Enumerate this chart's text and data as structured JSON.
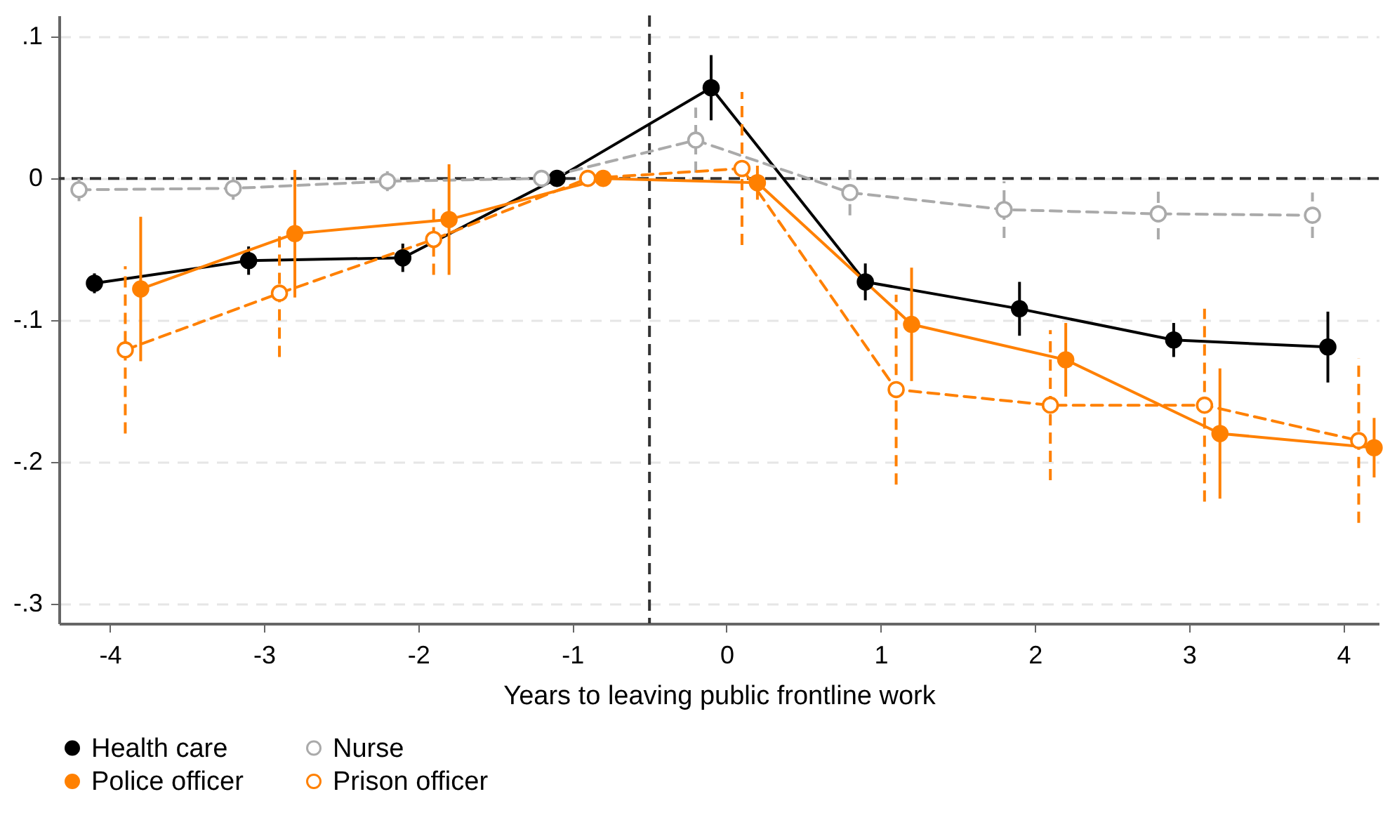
{
  "chart_data": {
    "type": "line",
    "xlabel": "Years to leaving public frontline work",
    "xlim": [
      -4.33,
      4.23
    ],
    "xticks": [
      -4,
      -3,
      -2,
      -1,
      0,
      1,
      2,
      3,
      4
    ],
    "ylim": [
      -0.314,
      0.115
    ],
    "yticks": [
      {
        "value": 0.1,
        "label": ".1"
      },
      {
        "value": 0,
        "label": "0"
      },
      {
        "value": -0.1,
        "label": "-.1"
      },
      {
        "value": -0.2,
        "label": "-.2"
      },
      {
        "value": -0.3,
        "label": "-.3"
      }
    ],
    "grid": "y",
    "legend": "bottom",
    "marker": "circle",
    "ref_lines": [
      {
        "axis": "y",
        "value": 0,
        "label": null,
        "color": "#333333",
        "line_style": "dashed"
      },
      {
        "axis": "x",
        "value": -0.5,
        "label": null,
        "color": "#333333",
        "line_style": "dashed"
      }
    ],
    "series": [
      {
        "name": "Health care",
        "color": "#000000",
        "line_style": "solid",
        "x": [
          -4.1,
          -3.1,
          -2.1,
          -1.1,
          -0.1,
          0.9,
          1.9,
          2.9,
          3.9
        ],
        "values": [
          -0.074,
          -0.058,
          -0.056,
          0,
          0.064,
          -0.073,
          -0.092,
          -0.114,
          -0.119
        ],
        "errors": [
          0.007,
          0.01,
          0.01,
          0.003,
          0.023,
          0.013,
          0.019,
          0.012,
          0.025
        ]
      },
      {
        "name": "Nurse",
        "color": "#aaaaaa",
        "line_style": "dashed",
        "x": [
          -4.2,
          -3.2,
          -2.2,
          -1.2,
          -0.2,
          0.8,
          1.8,
          2.8,
          3.8
        ],
        "values": [
          -0.008,
          -0.007,
          -0.002,
          0,
          0.027,
          -0.01,
          -0.022,
          -0.025,
          -0.026
        ],
        "errors": [
          0.008,
          0.008,
          0.007,
          0.002,
          0.023,
          0.016,
          0.02,
          0.018,
          0.016
        ]
      },
      {
        "name": "Police officer",
        "color": "#ff8000",
        "line_style": "solid",
        "x": [
          -3.8,
          -2.8,
          -1.8,
          -0.8,
          0.2,
          1.2,
          2.2,
          3.2,
          4.2
        ],
        "values": [
          -0.078,
          -0.039,
          -0.029,
          0,
          -0.003,
          -0.103,
          -0.128,
          -0.18,
          -0.19
        ],
        "errors": [
          0.051,
          0.045,
          0.039,
          0.002,
          0.012,
          0.04,
          0.026,
          0.046,
          0.021
        ]
      },
      {
        "name": "Prison officer",
        "color": "#ff8000",
        "line_style": "dashed",
        "x": [
          -3.9,
          -2.9,
          -1.9,
          -0.9,
          0.1,
          1.1,
          2.1,
          3.1,
          4.1
        ],
        "values": [
          -0.121,
          -0.081,
          -0.043,
          0,
          0.007,
          -0.149,
          -0.16,
          -0.16,
          -0.185
        ],
        "errors": [
          0.059,
          0.045,
          0.025,
          0.002,
          0.054,
          0.067,
          0.053,
          0.068,
          0.058
        ]
      }
    ]
  }
}
